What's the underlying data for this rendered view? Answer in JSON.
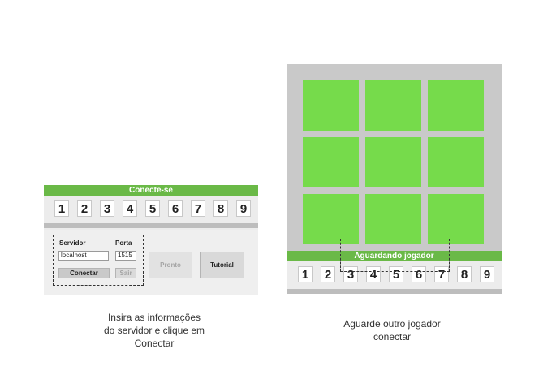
{
  "connect_panel": {
    "header": "Conecte-se",
    "numbers": [
      "1",
      "2",
      "3",
      "4",
      "5",
      "6",
      "7",
      "8",
      "9"
    ],
    "server_label": "Servidor",
    "server_value": "localhost",
    "port_label": "Porta",
    "port_value": "1515",
    "connect_button": "Conectar",
    "exit_button": "Sair",
    "ready_button": "Pronto",
    "tutorial_button": "Tutorial"
  },
  "connect_caption": [
    "Insira as informações",
    "do servidor e clique em",
    "Conectar"
  ],
  "waiting_panel": {
    "status": "Aguardando jogador",
    "numbers": [
      "1",
      "2",
      "3",
      "4",
      "5",
      "6",
      "7",
      "8",
      "9"
    ]
  },
  "waiting_caption": [
    "Aguarde outro jogador",
    "conectar"
  ],
  "colors": {
    "accent": "#6ab947",
    "tile": "#76db4b",
    "panel": "#c9c9c9"
  }
}
